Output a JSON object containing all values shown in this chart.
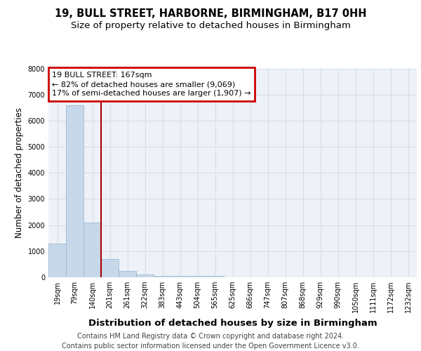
{
  "title1": "19, BULL STREET, HARBORNE, BIRMINGHAM, B17 0HH",
  "title2": "Size of property relative to detached houses in Birmingham",
  "xlabel": "Distribution of detached houses by size in Birmingham",
  "ylabel": "Number of detached properties",
  "footer1": "Contains HM Land Registry data © Crown copyright and database right 2024.",
  "footer2": "Contains public sector information licensed under the Open Government Licence v3.0.",
  "bar_labels": [
    "19sqm",
    "79sqm",
    "140sqm",
    "201sqm",
    "261sqm",
    "322sqm",
    "383sqm",
    "443sqm",
    "504sqm",
    "565sqm",
    "625sqm",
    "686sqm",
    "747sqm",
    "807sqm",
    "868sqm",
    "929sqm",
    "990sqm",
    "1050sqm",
    "1111sqm",
    "1172sqm",
    "1232sqm"
  ],
  "bar_values": [
    1300,
    6600,
    2100,
    700,
    250,
    100,
    50,
    50,
    50,
    50,
    0,
    0,
    0,
    0,
    0,
    0,
    0,
    0,
    0,
    0,
    0
  ],
  "bar_color": "#c8d8eb",
  "bar_edgecolor": "#9ab8d0",
  "vline_x": 2.5,
  "vline_color": "#aa0000",
  "annotation_line1": "19 BULL STREET: 167sqm",
  "annotation_line2": "← 82% of detached houses are smaller (9,069)",
  "annotation_line3": "17% of semi-detached houses are larger (1,907) →",
  "annotation_box_color": "#cc0000",
  "ylim": [
    0,
    8000
  ],
  "yticks": [
    0,
    1000,
    2000,
    3000,
    4000,
    5000,
    6000,
    7000,
    8000
  ],
  "background_color": "#eef2f8",
  "grid_color": "#d8dfe8",
  "title_fontsize": 10.5,
  "subtitle_fontsize": 9.5,
  "ylabel_fontsize": 8.5,
  "xlabel_fontsize": 9.5,
  "tick_fontsize": 7,
  "annotation_fontsize": 8,
  "footer_fontsize": 7
}
